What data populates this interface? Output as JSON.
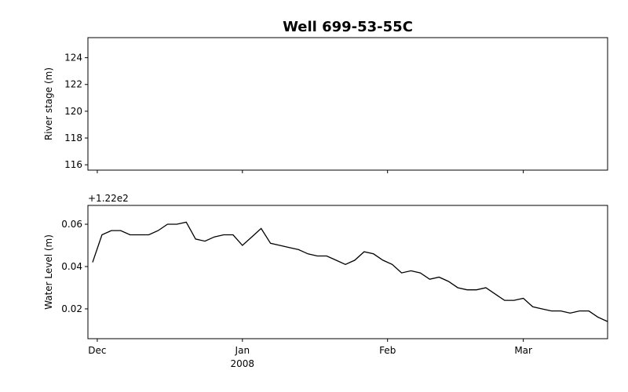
{
  "chart_data": [
    {
      "type": "line",
      "title": "Well 699-53-55C",
      "ylabel": "River stage (m)",
      "xlim": [
        "2007-11-29",
        "2008-03-19"
      ],
      "xticks": [
        "2007-12-01",
        "2008-01-01",
        "2008-02-01",
        "2008-03-01"
      ],
      "ylim": [
        115.6,
        125.5
      ],
      "yticks": [
        116,
        118,
        120,
        122,
        124
      ],
      "x": [],
      "series": []
    },
    {
      "type": "line",
      "ylabel": "Water Level (m)",
      "offset_label": "+1.22e2",
      "xlim": [
        "2007-11-29",
        "2008-03-19"
      ],
      "xticks": [
        {
          "value": "2007-12-01",
          "label": "Dec"
        },
        {
          "value": "2008-01-01",
          "label": "Jan",
          "sublabel": "2008"
        },
        {
          "value": "2008-02-01",
          "label": "Feb"
        },
        {
          "value": "2008-03-01",
          "label": "Mar"
        }
      ],
      "ylim": [
        0.0059,
        0.0689
      ],
      "yticks": [
        0.02,
        0.04,
        0.06
      ],
      "x": [
        "2007-11-30",
        "2007-12-02",
        "2007-12-04",
        "2007-12-06",
        "2007-12-08",
        "2007-12-10",
        "2007-12-12",
        "2007-12-14",
        "2007-12-16",
        "2007-12-18",
        "2007-12-20",
        "2007-12-22",
        "2007-12-24",
        "2007-12-26",
        "2007-12-28",
        "2007-12-30",
        "2008-01-01",
        "2008-01-03",
        "2008-01-05",
        "2008-01-07",
        "2008-01-09",
        "2008-01-11",
        "2008-01-13",
        "2008-01-15",
        "2008-01-17",
        "2008-01-19",
        "2008-01-21",
        "2008-01-23",
        "2008-01-25",
        "2008-01-27",
        "2008-01-29",
        "2008-01-31",
        "2008-02-02",
        "2008-02-04",
        "2008-02-06",
        "2008-02-08",
        "2008-02-10",
        "2008-02-12",
        "2008-02-14",
        "2008-02-16",
        "2008-02-18",
        "2008-02-20",
        "2008-02-22",
        "2008-02-24",
        "2008-02-26",
        "2008-02-28",
        "2008-03-01",
        "2008-03-03",
        "2008-03-05",
        "2008-03-07",
        "2008-03-09",
        "2008-03-11",
        "2008-03-13",
        "2008-03-15",
        "2008-03-17",
        "2008-03-19"
      ],
      "series": [
        {
          "color": "#000000",
          "values": [
            0.042,
            0.055,
            0.057,
            0.057,
            0.055,
            0.055,
            0.055,
            0.057,
            0.06,
            0.06,
            0.061,
            0.053,
            0.052,
            0.054,
            0.055,
            0.055,
            0.05,
            0.054,
            0.058,
            0.051,
            0.05,
            0.049,
            0.048,
            0.046,
            0.045,
            0.045,
            0.043,
            0.041,
            0.043,
            0.047,
            0.046,
            0.043,
            0.041,
            0.037,
            0.038,
            0.037,
            0.034,
            0.035,
            0.033,
            0.03,
            0.029,
            0.029,
            0.03,
            0.027,
            0.024,
            0.024,
            0.025,
            0.021,
            0.02,
            0.019,
            0.019,
            0.018,
            0.019,
            0.019,
            0.016,
            0.014
          ]
        }
      ]
    }
  ]
}
